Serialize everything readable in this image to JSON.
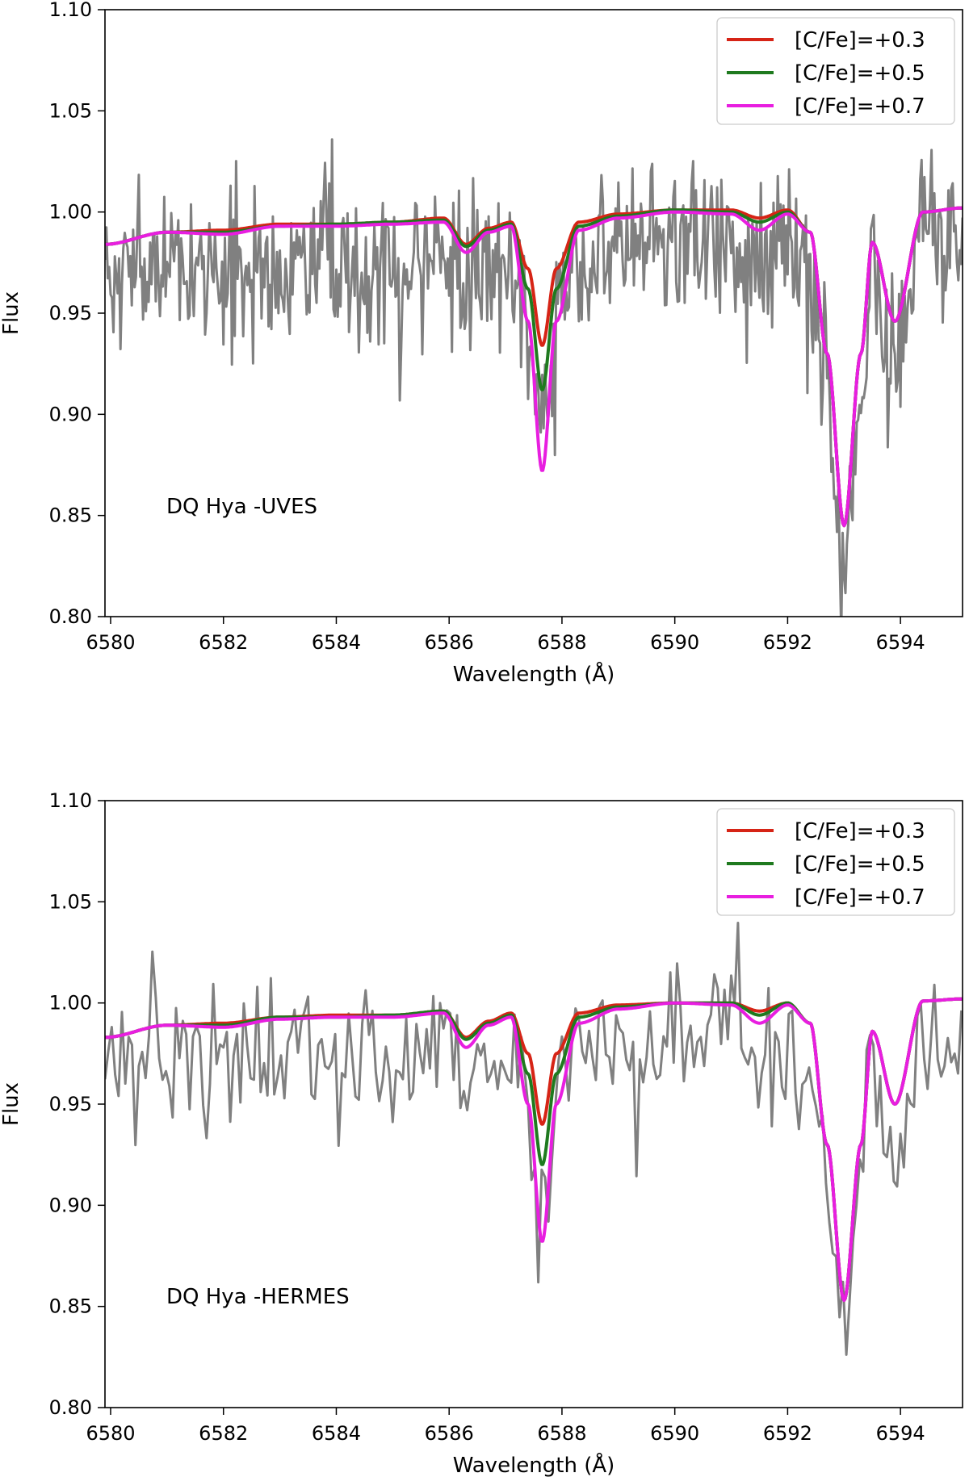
{
  "chart_data": [
    {
      "type": "line",
      "annotation": "DQ Hya -UVES",
      "xlabel": "Wavelength (Å)",
      "ylabel": "Flux",
      "xlim": [
        6579.9,
        6595.1
      ],
      "ylim": [
        0.8,
        1.1
      ],
      "xticks": [
        6580,
        6582,
        6584,
        6586,
        6588,
        6590,
        6592,
        6594
      ],
      "yticks": [
        0.8,
        0.85,
        0.9,
        0.95,
        1.0,
        1.05,
        1.1
      ],
      "ytick_labels": [
        "0.80",
        "0.85",
        "0.90",
        "0.95",
        "1.00",
        "1.05",
        "1.10"
      ],
      "legend": {
        "placement": "upper right",
        "entries": [
          "[C/Fe]=+0.3",
          "[C/Fe]=+0.5",
          "[C/Fe]=+0.7"
        ]
      },
      "observed": {
        "color": "#808080",
        "sampling": 0.025,
        "noise_amplitude": 0.028,
        "seed": 7
      },
      "series": [
        {
          "name": "[C/Fe]=+0.3",
          "color": "#d62416",
          "x": [
            6579.9,
            6581,
            6582,
            6583,
            6584,
            6585,
            6585.9,
            6586.3,
            6586.7,
            6587.1,
            6587.4,
            6587.65,
            6587.9,
            6588.3,
            6589,
            6590,
            6591,
            6591.5,
            6592,
            6592.4,
            6592.7,
            6593,
            6593.3,
            6593.5,
            6593.9,
            6594.4,
            6595.1
          ],
          "y": [
            0.984,
            0.99,
            0.991,
            0.994,
            0.994,
            0.995,
            0.997,
            0.984,
            0.992,
            0.995,
            0.972,
            0.934,
            0.972,
            0.995,
            0.999,
            1.001,
            1.001,
            0.997,
            1.001,
            0.99,
            0.93,
            0.845,
            0.93,
            0.985,
            0.946,
            1.0,
            1.002
          ]
        },
        {
          "name": "[C/Fe]=+0.5",
          "color": "#1f7a1f",
          "x": [
            6579.9,
            6581,
            6582,
            6583,
            6584,
            6585,
            6585.9,
            6586.3,
            6586.7,
            6587.1,
            6587.4,
            6587.65,
            6587.9,
            6588.3,
            6589,
            6590,
            6591,
            6591.5,
            6592,
            6592.4,
            6592.7,
            6593,
            6593.3,
            6593.5,
            6593.9,
            6594.4,
            6595.1
          ],
          "y": [
            0.984,
            0.99,
            0.99,
            0.993,
            0.994,
            0.995,
            0.996,
            0.983,
            0.991,
            0.994,
            0.962,
            0.912,
            0.962,
            0.993,
            0.998,
            1.001,
            1.0,
            0.995,
            1.0,
            0.99,
            0.93,
            0.845,
            0.93,
            0.985,
            0.946,
            1.0,
            1.002
          ]
        },
        {
          "name": "[C/Fe]=+0.7",
          "color": "#e81ee0",
          "x": [
            6579.9,
            6581,
            6582,
            6583,
            6584,
            6585,
            6585.9,
            6586.3,
            6586.7,
            6587.1,
            6587.4,
            6587.65,
            6587.9,
            6588.3,
            6589,
            6590,
            6591,
            6591.5,
            6592,
            6592.4,
            6592.7,
            6593,
            6593.3,
            6593.5,
            6593.9,
            6594.4,
            6595.1
          ],
          "y": [
            0.984,
            0.99,
            0.989,
            0.993,
            0.993,
            0.994,
            0.995,
            0.98,
            0.99,
            0.993,
            0.946,
            0.872,
            0.946,
            0.991,
            0.997,
            1.0,
            0.999,
            0.991,
            0.999,
            0.99,
            0.93,
            0.845,
            0.93,
            0.985,
            0.946,
            1.0,
            1.002
          ]
        }
      ]
    },
    {
      "type": "line",
      "annotation": "DQ Hya -HERMES",
      "xlabel": "Wavelength (Å)",
      "ylabel": "Flux",
      "xlim": [
        6579.9,
        6595.1
      ],
      "ylim": [
        0.8,
        1.1
      ],
      "xticks": [
        6580,
        6582,
        6584,
        6586,
        6588,
        6590,
        6592,
        6594
      ],
      "yticks": [
        0.8,
        0.85,
        0.9,
        0.95,
        1.0,
        1.05,
        1.1
      ],
      "ytick_labels": [
        "0.80",
        "0.85",
        "0.90",
        "0.95",
        "1.00",
        "1.05",
        "1.10"
      ],
      "legend": {
        "placement": "upper right",
        "entries": [
          "[C/Fe]=+0.3",
          "[C/Fe]=+0.5",
          "[C/Fe]=+0.7"
        ]
      },
      "observed": {
        "color": "#808080",
        "sampling": 0.06,
        "noise_amplitude": 0.024,
        "seed": 13
      },
      "series": [
        {
          "name": "[C/Fe]=+0.3",
          "color": "#d62416",
          "x": [
            6579.9,
            6581,
            6582,
            6583,
            6584,
            6585,
            6585.9,
            6586.3,
            6586.7,
            6587.1,
            6587.4,
            6587.65,
            6587.9,
            6588.3,
            6589,
            6590,
            6591,
            6591.5,
            6592,
            6592.4,
            6592.7,
            6593,
            6593.3,
            6593.5,
            6593.9,
            6594.4,
            6595.1
          ],
          "y": [
            0.983,
            0.989,
            0.99,
            0.993,
            0.994,
            0.994,
            0.996,
            0.983,
            0.991,
            0.995,
            0.975,
            0.94,
            0.975,
            0.995,
            0.999,
            1.0,
            1.0,
            0.996,
            1.0,
            0.99,
            0.93,
            0.853,
            0.93,
            0.986,
            0.95,
            1.001,
            1.002
          ]
        },
        {
          "name": "[C/Fe]=+0.5",
          "color": "#1f7a1f",
          "x": [
            6579.9,
            6581,
            6582,
            6583,
            6584,
            6585,
            6585.9,
            6586.3,
            6586.7,
            6587.1,
            6587.4,
            6587.65,
            6587.9,
            6588.3,
            6589,
            6590,
            6591,
            6591.5,
            6592,
            6592.4,
            6592.7,
            6593,
            6593.3,
            6593.5,
            6593.9,
            6594.4,
            6595.1
          ],
          "y": [
            0.983,
            0.989,
            0.989,
            0.993,
            0.993,
            0.994,
            0.996,
            0.982,
            0.99,
            0.994,
            0.965,
            0.92,
            0.965,
            0.993,
            0.998,
            1.0,
            1.0,
            0.994,
            1.0,
            0.99,
            0.93,
            0.853,
            0.93,
            0.986,
            0.95,
            1.001,
            1.002
          ]
        },
        {
          "name": "[C/Fe]=+0.7",
          "color": "#e81ee0",
          "x": [
            6579.9,
            6581,
            6582,
            6583,
            6584,
            6585,
            6585.9,
            6586.3,
            6586.7,
            6587.1,
            6587.4,
            6587.65,
            6587.9,
            6588.3,
            6589,
            6590,
            6591,
            6591.5,
            6592,
            6592.4,
            6592.7,
            6593,
            6593.3,
            6593.5,
            6593.9,
            6594.4,
            6595.1
          ],
          "y": [
            0.983,
            0.989,
            0.988,
            0.992,
            0.993,
            0.993,
            0.995,
            0.978,
            0.989,
            0.993,
            0.95,
            0.882,
            0.95,
            0.99,
            0.997,
            1.0,
            0.999,
            0.99,
            0.999,
            0.99,
            0.93,
            0.853,
            0.93,
            0.986,
            0.95,
            1.001,
            1.002
          ]
        }
      ]
    }
  ]
}
